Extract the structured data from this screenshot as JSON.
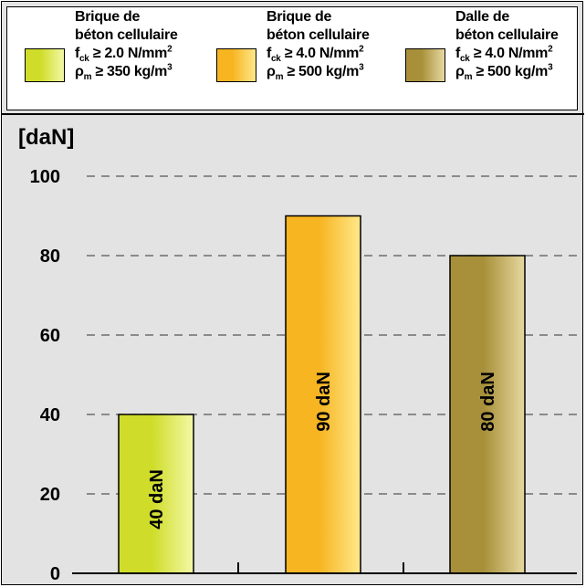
{
  "legend": [
    {
      "line1": "Brique de",
      "line2": "béton cellulaire",
      "fck_prefix": "f",
      "fck_sub": "ck",
      "fck_rest": " ≥ 2.0 N/mm",
      "fck_sup": "2",
      "rho_prefix": "ρ",
      "rho_sub": "m",
      "rho_rest": " ≥ 350 kg/m",
      "rho_sup": "3"
    },
    {
      "line1": "Brique de",
      "line2": "béton cellulaire",
      "fck_prefix": "f",
      "fck_sub": "ck",
      "fck_rest": " ≥ 4.0 N/mm",
      "fck_sup": "2",
      "rho_prefix": "ρ",
      "rho_sub": "m",
      "rho_rest": " ≥ 500 kg/m",
      "rho_sup": "3"
    },
    {
      "line1": "Dalle de",
      "line2": "béton cellulaire",
      "fck_prefix": "f",
      "fck_sub": "ck",
      "fck_rest": " ≥ 4.0 N/mm",
      "fck_sup": "2",
      "rho_prefix": "ρ",
      "rho_sub": "m",
      "rho_rest": " ≥ 500 kg/m",
      "rho_sup": "3"
    }
  ],
  "chart_data": {
    "type": "bar",
    "ylabel": "[daN]",
    "ylim": [
      0,
      100
    ],
    "yticks": [
      "0",
      "20",
      "40",
      "60",
      "80",
      "100"
    ],
    "grid": "dashed horizontal",
    "values": [
      40,
      90,
      80
    ],
    "data_labels": [
      "40 daN",
      "90 daN",
      "80 daN"
    ],
    "colors": [
      {
        "dark": "#cfdd2a",
        "light": "#f4f8a6"
      },
      {
        "dark": "#f7b521",
        "light": "#ffe88a"
      },
      {
        "dark": "#a8903a",
        "light": "#e6d8a0"
      }
    ]
  }
}
